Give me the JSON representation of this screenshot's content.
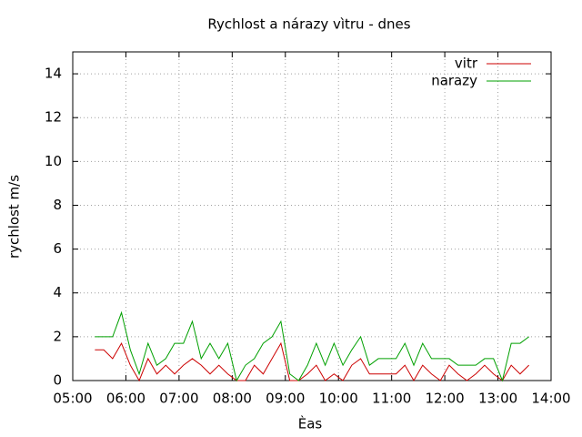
{
  "chart_data": {
    "type": "line",
    "title": "Rychlost a nárazy vìtru - dnes",
    "xlabel": "Èas",
    "ylabel": "rychlost m/s",
    "x": [
      "05:25",
      "05:35",
      "05:45",
      "05:55",
      "06:05",
      "06:15",
      "06:25",
      "06:35",
      "06:45",
      "06:55",
      "07:05",
      "07:15",
      "07:25",
      "07:35",
      "07:45",
      "07:55",
      "08:05",
      "08:15",
      "08:25",
      "08:35",
      "08:45",
      "08:55",
      "09:05",
      "09:15",
      "09:25",
      "09:35",
      "09:45",
      "09:55",
      "10:05",
      "10:15",
      "10:25",
      "10:35",
      "10:45",
      "10:55",
      "11:05",
      "11:15",
      "11:25",
      "11:35",
      "11:45",
      "11:55",
      "12:05",
      "12:15",
      "12:25",
      "12:35",
      "12:45",
      "12:55",
      "13:05",
      "13:15",
      "13:25",
      "13:35"
    ],
    "series": [
      {
        "name": "vitr",
        "color": "#cc0000",
        "values": [
          1.4,
          1.4,
          1.0,
          1.7,
          0.7,
          0,
          1.0,
          0.3,
          0.7,
          0.3,
          0.7,
          1.0,
          0.7,
          0.3,
          0.7,
          0.3,
          0,
          0,
          0.7,
          0.3,
          1.0,
          1.7,
          0,
          0,
          0.3,
          0.7,
          0,
          0.3,
          0,
          0.7,
          1.0,
          0.3,
          0.3,
          0.3,
          0.3,
          0.7,
          0,
          0.7,
          0.3,
          0,
          0.7,
          0.3,
          0,
          0.3,
          0.7,
          0.3,
          0,
          0.7,
          0.3,
          0.7
        ]
      },
      {
        "name": "narazy",
        "color": "#00a000",
        "values": [
          2.0,
          2.0,
          2.0,
          3.1,
          1.4,
          0.3,
          1.7,
          0.7,
          1.0,
          1.7,
          1.7,
          2.7,
          1.0,
          1.7,
          1.0,
          1.7,
          0,
          0.7,
          1.0,
          1.7,
          2.0,
          2.7,
          0.3,
          0,
          0.7,
          1.7,
          0.7,
          1.7,
          0.7,
          1.4,
          2.0,
          0.7,
          1.0,
          1.0,
          1.0,
          1.7,
          0.7,
          1.7,
          1.0,
          1.0,
          1.0,
          0.7,
          0.7,
          0.7,
          1.0,
          1.0,
          0,
          1.7,
          1.7,
          2.0
        ]
      }
    ],
    "xlim": [
      "05:00",
      "14:00"
    ],
    "xticks": [
      "05:00",
      "06:00",
      "07:00",
      "08:00",
      "09:00",
      "10:00",
      "11:00",
      "12:00",
      "13:00",
      "14:00"
    ],
    "ylim": [
      0,
      15
    ],
    "yticks": [
      0,
      2,
      4,
      6,
      8,
      10,
      12,
      14
    ],
    "grid": true,
    "legend": "top-right"
  }
}
